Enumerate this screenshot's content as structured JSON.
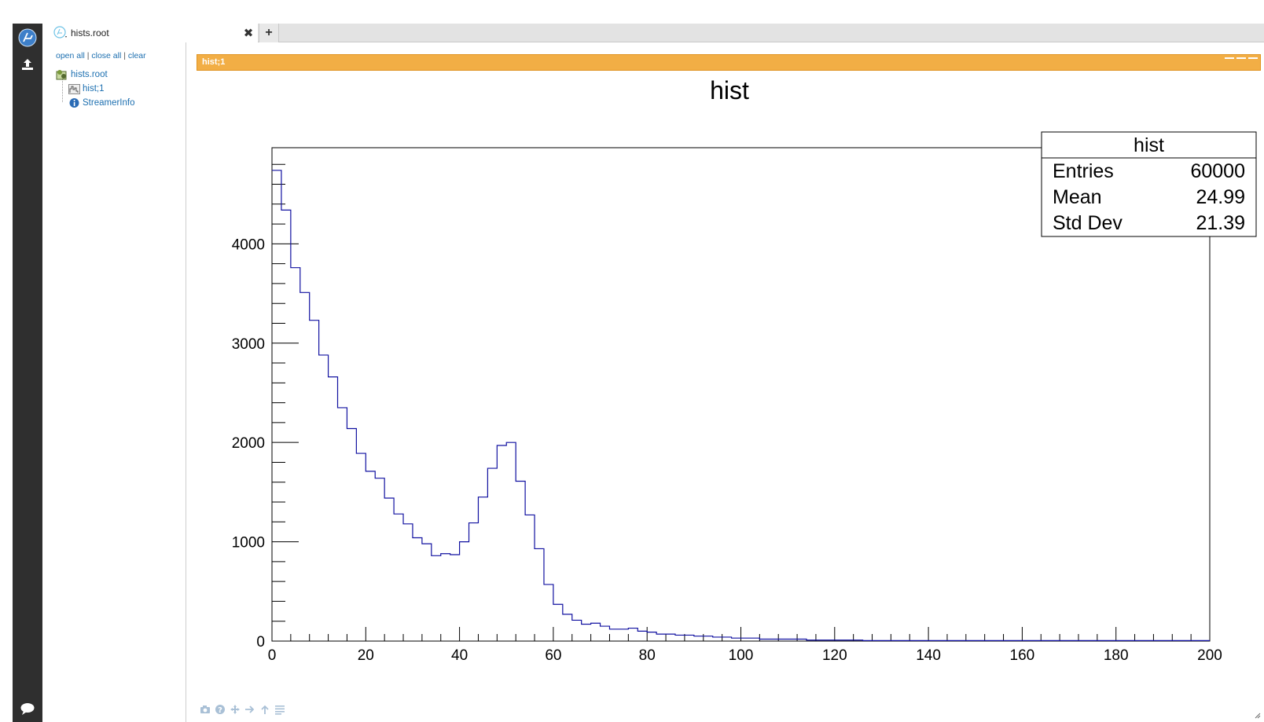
{
  "browser": {
    "tab_title": "hists.root",
    "links": {
      "open_all": "open all",
      "close_all": "close all",
      "clear": "clear",
      "sep": "|"
    },
    "tree": [
      {
        "label": "hists.root",
        "icon": "root-file-icon"
      },
      {
        "label": "hist;1",
        "icon": "histogram-icon"
      },
      {
        "label": "StreamerInfo",
        "icon": "info-icon"
      }
    ]
  },
  "tabs": {
    "close_symbol": "✖",
    "add_symbol": "+"
  },
  "frame": {
    "title": "hist;1"
  },
  "colors": {
    "accent": "#f2ae45",
    "hist_line": "#1010a0",
    "link": "#1c6fb0",
    "strip": "#2f2f2f"
  },
  "chart_data": {
    "type": "bar",
    "title": "hist",
    "xlabel": "",
    "ylabel": "",
    "xlim": [
      0,
      200
    ],
    "ylim": [
      0,
      4968
    ],
    "x_ticks": [
      "0",
      "20",
      "40",
      "60",
      "80",
      "100",
      "120",
      "140",
      "160",
      "180",
      "200"
    ],
    "y_ticks": [
      "0",
      "1000",
      "2000",
      "3000",
      "4000"
    ],
    "bin_width": 2,
    "values": [
      4740,
      4340,
      3760,
      3510,
      3230,
      2880,
      2660,
      2350,
      2140,
      1890,
      1710,
      1640,
      1440,
      1280,
      1180,
      1040,
      980,
      860,
      880,
      870,
      1000,
      1190,
      1450,
      1740,
      1970,
      2000,
      1610,
      1270,
      930,
      570,
      370,
      270,
      210,
      170,
      180,
      150,
      120,
      120,
      130,
      100,
      90,
      70,
      70,
      60,
      60,
      50,
      50,
      40,
      40,
      30,
      30,
      30,
      20,
      20,
      20,
      20,
      20,
      10,
      10,
      10,
      10,
      10,
      10,
      5,
      5,
      5,
      5,
      5,
      5,
      5,
      5,
      5,
      5,
      5,
      5,
      5,
      5,
      5,
      5,
      5,
      5,
      5,
      5,
      5,
      5,
      5,
      5,
      5,
      5,
      5,
      5,
      5,
      5,
      5,
      5,
      5,
      5,
      5,
      5,
      5
    ],
    "stats": {
      "title": "hist",
      "rows": [
        {
          "label": "Entries",
          "value": "60000"
        },
        {
          "label": "Mean",
          "value": "24.99"
        },
        {
          "label": "Std Dev",
          "value": "21.39"
        }
      ]
    }
  }
}
